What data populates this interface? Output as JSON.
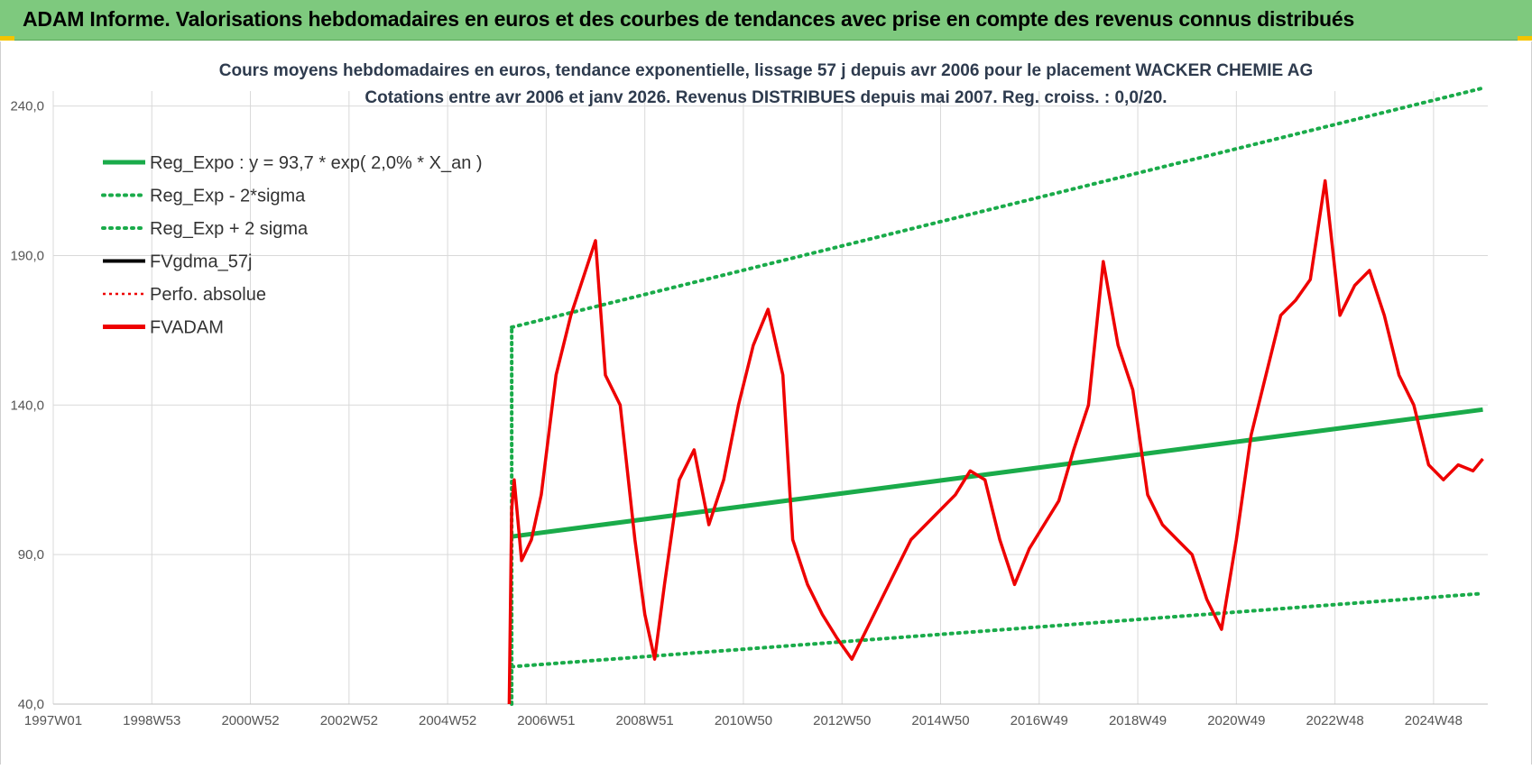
{
  "banner": {
    "title": "ADAM Informe. Valorisations hebdomadaires en euros et des courbes de tendances avec prise en compte des revenus connus distribués"
  },
  "colors": {
    "banner_bg": "#7ec97e",
    "reg_green": "#1aab4a",
    "fvadam_red": "#ee0000",
    "fvgdma_black": "#000000",
    "grid": "#d9d9d9"
  },
  "chart_data": {
    "type": "line",
    "title_lines": [
      "Cours moyens hebdomadaires en euros, tendance exponentielle, lissage 57 j depuis avr 2006 pour le placement WACKER CHEMIE AG",
      "Cotations entre avr 2006 et janv 2026. Revenus DISTRIBUES depuis mai 2007. Reg. croiss. : 0,0/20."
    ],
    "x_axis": {
      "start_year": 1997.0,
      "end_year": 2026.1,
      "tick_labels": [
        "1997W01",
        "1998W53",
        "2000W52",
        "2002W52",
        "2004W52",
        "2006W51",
        "2008W51",
        "2010W50",
        "2012W50",
        "2014W50",
        "2016W49",
        "2018W49",
        "2020W49",
        "2022W48",
        "2024W48"
      ],
      "tick_years": [
        1997.0,
        1999.0,
        2001.0,
        2003.0,
        2005.0,
        2007.0,
        2009.0,
        2011.0,
        2013.0,
        2015.0,
        2017.0,
        2019.0,
        2021.0,
        2023.0,
        2025.0
      ]
    },
    "y_axis": {
      "min": 40,
      "max": 245,
      "ticks": [
        40,
        90,
        140,
        190,
        240
      ],
      "tick_labels": [
        "40,0",
        "90,0",
        "140,0",
        "190,0",
        "240,0"
      ]
    },
    "grid": true,
    "legend_position": "top-left",
    "legend": [
      {
        "name": "Reg_Expo : y = 93,7 * exp( 2,0% *  X_an )",
        "style": "solid-green"
      },
      {
        "name": "Reg_Exp - 2*sigma",
        "style": "dotted-green"
      },
      {
        "name": "Reg_Exp + 2 sigma",
        "style": "dotted-green"
      },
      {
        "name": "FVgdma_57j",
        "style": "solid-black"
      },
      {
        "name": "Perfo. absolue",
        "style": "dotted-red"
      },
      {
        "name": "FVADAM",
        "style": "solid-red"
      }
    ],
    "series": [
      {
        "name": "Reg_Expo : y = 93,7 * exp( 2,0% *  X_an )",
        "x": [
          2006.3,
          2026.0
        ],
        "y": [
          96,
          138.5
        ]
      },
      {
        "name": "Reg_Exp - 2*sigma",
        "x": [
          2006.3,
          2026.0
        ],
        "y": [
          52.5,
          77
        ]
      },
      {
        "name": "Reg_Exp + 2 sigma",
        "x": [
          2006.3,
          2026.0
        ],
        "y": [
          166,
          246
        ]
      },
      {
        "name": "FVADAM",
        "x": [
          2006.25,
          2006.3,
          2006.35,
          2006.5,
          2006.7,
          2006.9,
          2007.2,
          2007.5,
          2007.8,
          2008.0,
          2008.2,
          2008.5,
          2008.8,
          2009.0,
          2009.2,
          2009.4,
          2009.7,
          2010.0,
          2010.3,
          2010.6,
          2010.9,
          2011.2,
          2011.5,
          2011.8,
          2012.0,
          2012.3,
          2012.6,
          2012.9,
          2013.2,
          2013.5,
          2013.8,
          2014.1,
          2014.4,
          2014.7,
          2015.0,
          2015.3,
          2015.6,
          2015.9,
          2016.2,
          2016.5,
          2016.8,
          2017.1,
          2017.4,
          2017.7,
          2018.0,
          2018.3,
          2018.6,
          2018.9,
          2019.2,
          2019.5,
          2019.8,
          2020.1,
          2020.4,
          2020.7,
          2021.0,
          2021.3,
          2021.6,
          2021.9,
          2022.2,
          2022.5,
          2022.8,
          2023.1,
          2023.4,
          2023.7,
          2024.0,
          2024.3,
          2024.6,
          2024.9,
          2025.2,
          2025.5,
          2025.8,
          2026.0
        ],
        "y": [
          40,
          105,
          115,
          88,
          95,
          110,
          150,
          170,
          185,
          195,
          150,
          140,
          95,
          70,
          55,
          80,
          115,
          125,
          100,
          115,
          140,
          160,
          172,
          150,
          95,
          80,
          70,
          62,
          55,
          65,
          75,
          85,
          95,
          100,
          105,
          110,
          118,
          115,
          95,
          80,
          92,
          100,
          108,
          125,
          140,
          188,
          160,
          145,
          110,
          100,
          95,
          90,
          75,
          65,
          95,
          130,
          150,
          170,
          175,
          182,
          215,
          170,
          180,
          185,
          170,
          150,
          140,
          120,
          115,
          120,
          118,
          122
        ]
      }
    ]
  }
}
